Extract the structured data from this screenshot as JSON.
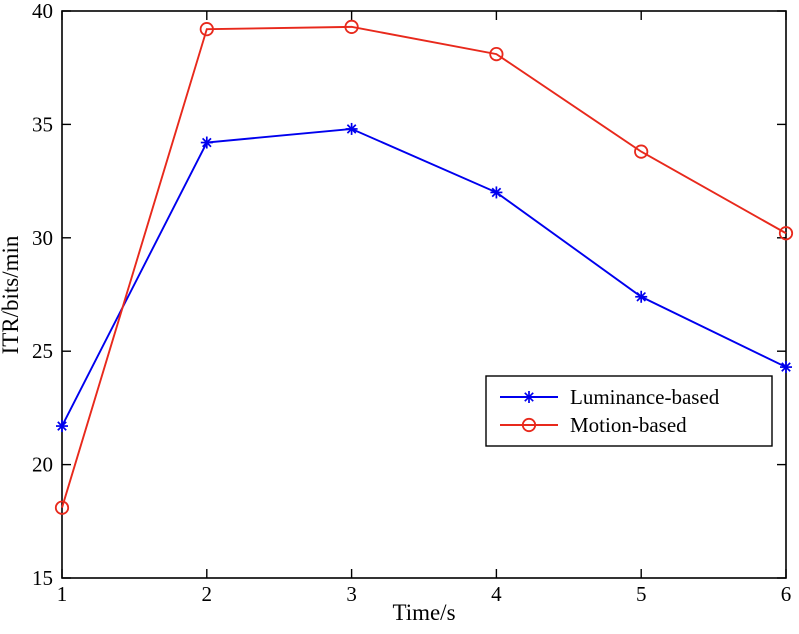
{
  "chart_data": {
    "type": "line",
    "title": "",
    "xlabel": "Time/s",
    "ylabel": "ITR/bits/min",
    "xlim": [
      1,
      6
    ],
    "ylim": [
      15,
      40
    ],
    "xticks": [
      1,
      2,
      3,
      4,
      5,
      6
    ],
    "yticks": [
      15,
      20,
      25,
      30,
      35,
      40
    ],
    "grid": false,
    "legend_position": "inside-right-lower",
    "x": [
      1,
      2,
      3,
      4,
      5,
      6
    ],
    "series": [
      {
        "name": "Luminance-based",
        "color": "#0000ee",
        "marker": "asterisk",
        "values": [
          21.7,
          34.2,
          34.8,
          32.0,
          27.4,
          24.3
        ]
      },
      {
        "name": "Motion-based",
        "color": "#e8291c",
        "marker": "circle",
        "values": [
          18.1,
          39.2,
          39.3,
          38.1,
          33.8,
          30.2
        ]
      }
    ],
    "axis_color": "#000000",
    "background_color": "#ffffff"
  }
}
